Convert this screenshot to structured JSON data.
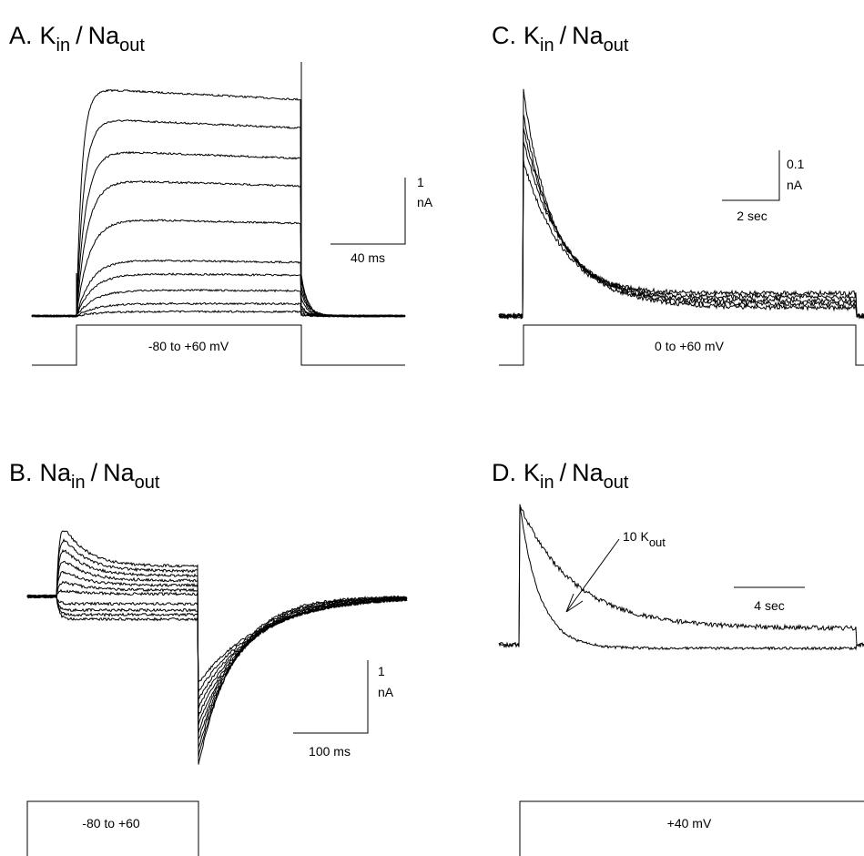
{
  "panels": [
    {
      "title": {
        "letter": "A.",
        "ion_in": "K",
        "sub_in": "in",
        "slash": "/",
        "ion_out": "Na",
        "sub_out": "out"
      },
      "scale_bar": {
        "amplitude": "1",
        "unit": "nA",
        "time": "40 ms"
      },
      "protocol": "-80 to +60 mV"
    },
    {
      "title": {
        "letter": "B.",
        "ion_in": "Na",
        "sub_in": "in",
        "slash": "/",
        "ion_out": "Na",
        "sub_out": "out"
      },
      "scale_bar": {
        "amplitude": "1",
        "unit": "nA",
        "time": "100 ms"
      },
      "protocol": "-80 to +60"
    },
    {
      "title": {
        "letter": "C.",
        "ion_in": "K",
        "sub_in": "in",
        "slash": "/",
        "ion_out": "Na",
        "sub_out": "out"
      },
      "scale_bar": {
        "amplitude": "0.1",
        "unit": "nA",
        "time": "2 sec"
      },
      "protocol": "0 to +60 mV"
    },
    {
      "title": {
        "letter": "D.",
        "ion_in": "K",
        "sub_in": "in",
        "slash": "/",
        "ion_out": "Na",
        "sub_out": "out"
      },
      "scale_bar": {
        "time": "4 sec"
      },
      "annotation": {
        "text": "10 K",
        "sub": "out"
      },
      "protocol": "+40 mV"
    }
  ]
}
